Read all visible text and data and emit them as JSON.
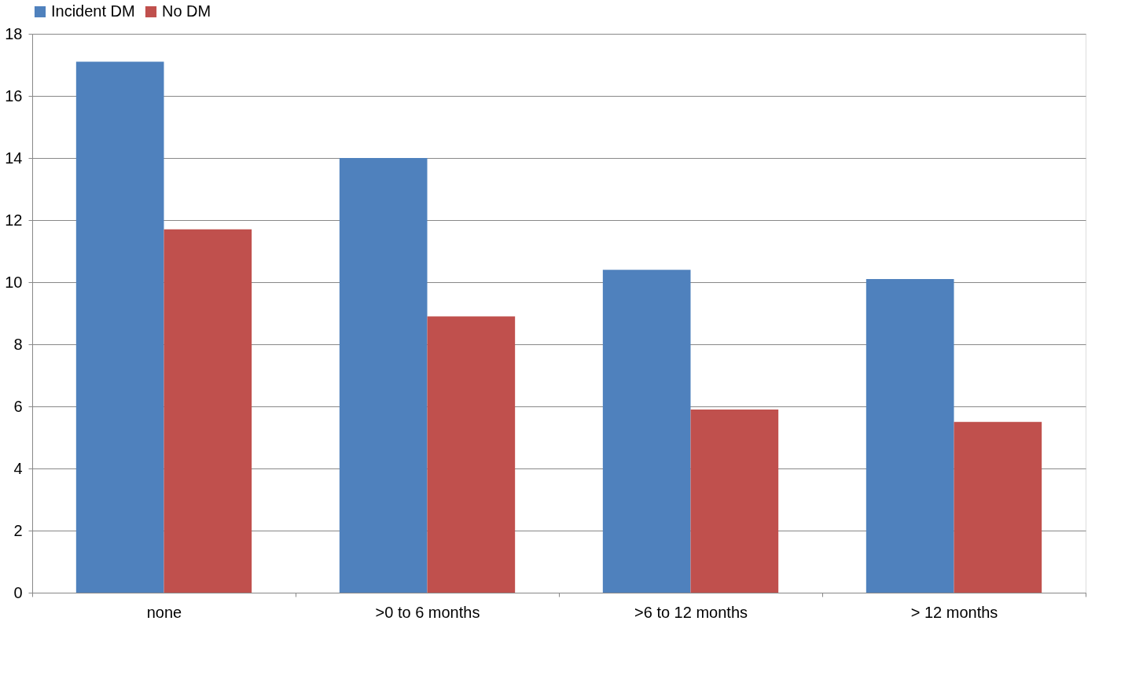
{
  "chart_data": {
    "type": "bar",
    "categories": [
      "none",
      ">0 to 6 months",
      ">6 to 12 months",
      "> 12 months"
    ],
    "series": [
      {
        "name": "Incident DM",
        "color": "#4f81bd",
        "values": [
          17.1,
          14.0,
          10.4,
          10.1
        ]
      },
      {
        "name": "No DM",
        "color": "#c0504d",
        "values": [
          11.7,
          8.9,
          5.9,
          5.5
        ]
      }
    ],
    "ylim": [
      0,
      18
    ],
    "yticks": [
      0,
      2,
      4,
      6,
      8,
      10,
      12,
      14,
      16,
      18
    ],
    "grid": "y",
    "legend": "top"
  }
}
